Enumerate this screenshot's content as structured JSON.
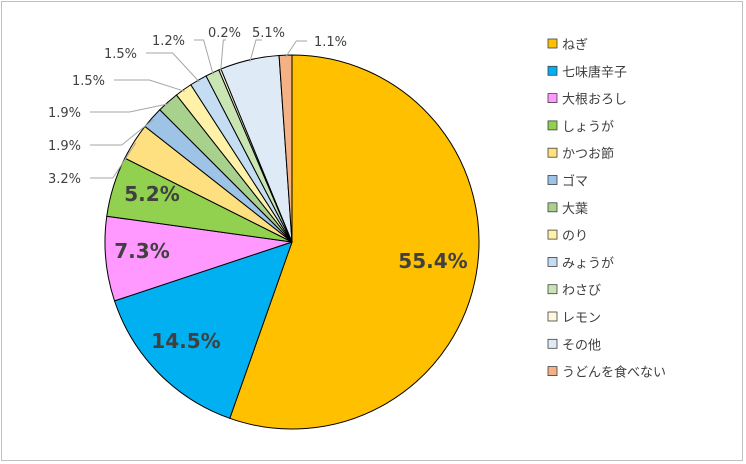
{
  "chart_data": {
    "type": "pie",
    "title": "",
    "legend_position": "right",
    "slices": [
      {
        "label": "ねぎ",
        "value": 55.4,
        "display": "55.4%",
        "color": "#FFC000"
      },
      {
        "label": "七味唐辛子",
        "value": 14.5,
        "display": "14.5%",
        "color": "#00B0F0"
      },
      {
        "label": "大根おろし",
        "value": 7.3,
        "display": "7.3%",
        "color": "#FF99FF"
      },
      {
        "label": "しょうが",
        "value": 5.2,
        "display": "5.2%",
        "color": "#92D050"
      },
      {
        "label": "かつお節",
        "value": 3.2,
        "display": "3.2%",
        "color": "#FFE081"
      },
      {
        "label": "ゴマ",
        "value": 1.9,
        "display": "1.9%",
        "color": "#9DC3E6"
      },
      {
        "label": "大葉",
        "value": 1.9,
        "display": "1.9%",
        "color": "#A9D18E"
      },
      {
        "label": "のり",
        "value": 1.5,
        "display": "1.5%",
        "color": "#FFF2A8"
      },
      {
        "label": "みょうが",
        "value": 1.5,
        "display": "1.5%",
        "color": "#C5DDF3"
      },
      {
        "label": "わさび",
        "value": 1.2,
        "display": "1.2%",
        "color": "#C9E5B4"
      },
      {
        "label": "レモン",
        "value": 0.2,
        "display": "0.2%",
        "color": "#FFF8DC"
      },
      {
        "label": "その他",
        "value": 5.1,
        "display": "5.1%",
        "color": "#DEEBF7"
      },
      {
        "label": "うどんを食べない",
        "value": 1.1,
        "display": "1.1%",
        "color": "#F4B183"
      }
    ]
  }
}
